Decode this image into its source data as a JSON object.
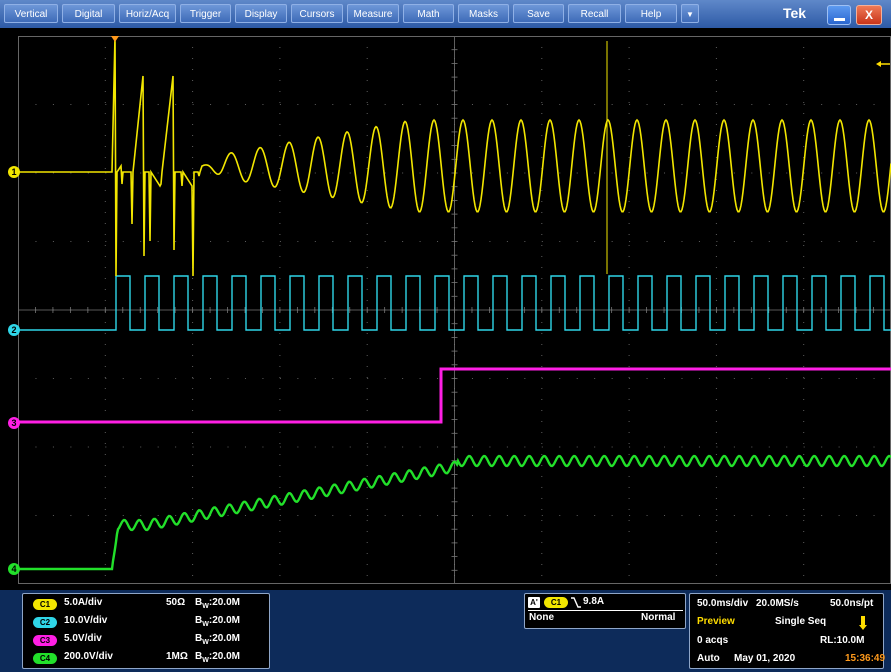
{
  "menu": [
    "Vertical",
    "Digital",
    "Horiz/Acq",
    "Trigger",
    "Display",
    "Cursors",
    "Measure",
    "Math",
    "Masks",
    "Save",
    "Recall",
    "Help"
  ],
  "menu_arrow": "▼",
  "brand": "Tek",
  "close_label": "X",
  "channel_markers": [
    "1",
    "2",
    "3",
    "4"
  ],
  "colors": {
    "ch1": "#f2e600",
    "ch2": "#2fd6e8",
    "ch3": "#ff1fe5",
    "ch4": "#22e02a",
    "trigger": "#ff9a1c"
  },
  "channels": [
    {
      "badge": "C1",
      "scale": "5.0A/div",
      "coupling": "50Ω",
      "bw": "20.0M",
      "color": "#f2e600"
    },
    {
      "badge": "C2",
      "scale": "10.0V/div",
      "coupling": "",
      "bw": "20.0M",
      "color": "#2fd6e8"
    },
    {
      "badge": "C3",
      "scale": "5.0V/div",
      "coupling": "",
      "bw": "20.0M",
      "color": "#ff1fe5"
    },
    {
      "badge": "C4",
      "scale": "200.0V/div",
      "coupling": "1MΩ",
      "bw": "20.0M",
      "color": "#22e02a"
    }
  ],
  "bw_prefix": "B",
  "bw_sub": "W",
  "bw_sep": ":",
  "trigger": {
    "source_badge": "C1",
    "slope_icon": "falling-edge",
    "level": "9.8A",
    "a_label": "A'",
    "line2_left": "None",
    "line2_right": "Normal"
  },
  "acq": {
    "timebase": "50.0ms/div",
    "sample_rate": "20.0MS/s",
    "per_pt": "50.0ns/pt",
    "mode": "Preview",
    "seq": "Single Seq",
    "acqs": "0 acqs",
    "rl": "RL:10.0M",
    "trigger_mode": "Auto",
    "date": "May 01, 2020",
    "time": "15:36:49"
  }
}
